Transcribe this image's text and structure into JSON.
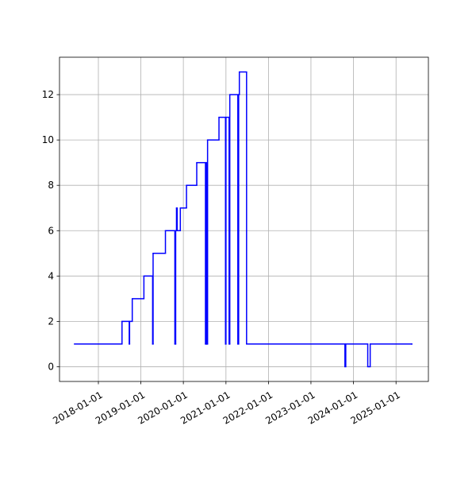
{
  "chart_data": {
    "type": "step",
    "color": "#0000ff",
    "grid": true,
    "x": [
      "2017-06-10",
      "2018-07-23",
      "2018-09-23",
      "2018-09-26",
      "2018-10-19",
      "2019-01-27",
      "2019-04-12",
      "2019-04-16",
      "2019-07-31",
      "2019-10-20",
      "2019-10-27",
      "2019-11-03",
      "2019-11-09",
      "2019-12-06",
      "2020-01-28",
      "2020-04-25",
      "2020-07-09",
      "2020-07-16",
      "2020-07-20",
      "2020-07-27",
      "2020-11-02",
      "2020-12-28",
      "2021-01-01",
      "2021-01-28",
      "2021-02-03",
      "2021-04-13",
      "2021-04-20",
      "2021-04-26",
      "2021-06-27",
      "2023-10-20",
      "2023-10-27",
      "2024-05-03",
      "2024-05-24",
      "2025-05-16"
    ],
    "values": [
      1,
      2,
      1,
      2,
      3,
      4,
      1,
      5,
      6,
      1,
      6,
      7,
      6,
      7,
      8,
      9,
      1,
      9,
      1,
      10,
      11,
      1,
      11,
      1,
      12,
      1,
      12,
      13,
      1,
      0,
      1,
      0,
      1,
      1
    ],
    "xlim": [
      "2017-02-01",
      "2025-10-06"
    ],
    "xticks": [
      "2018-01-01",
      "2019-01-01",
      "2020-01-01",
      "2021-01-01",
      "2022-01-01",
      "2023-01-01",
      "2024-01-01",
      "2025-01-01"
    ],
    "ylim": [
      -0.65,
      13.65
    ],
    "yticks": [
      0,
      2,
      4,
      6,
      8,
      10,
      12
    ]
  }
}
